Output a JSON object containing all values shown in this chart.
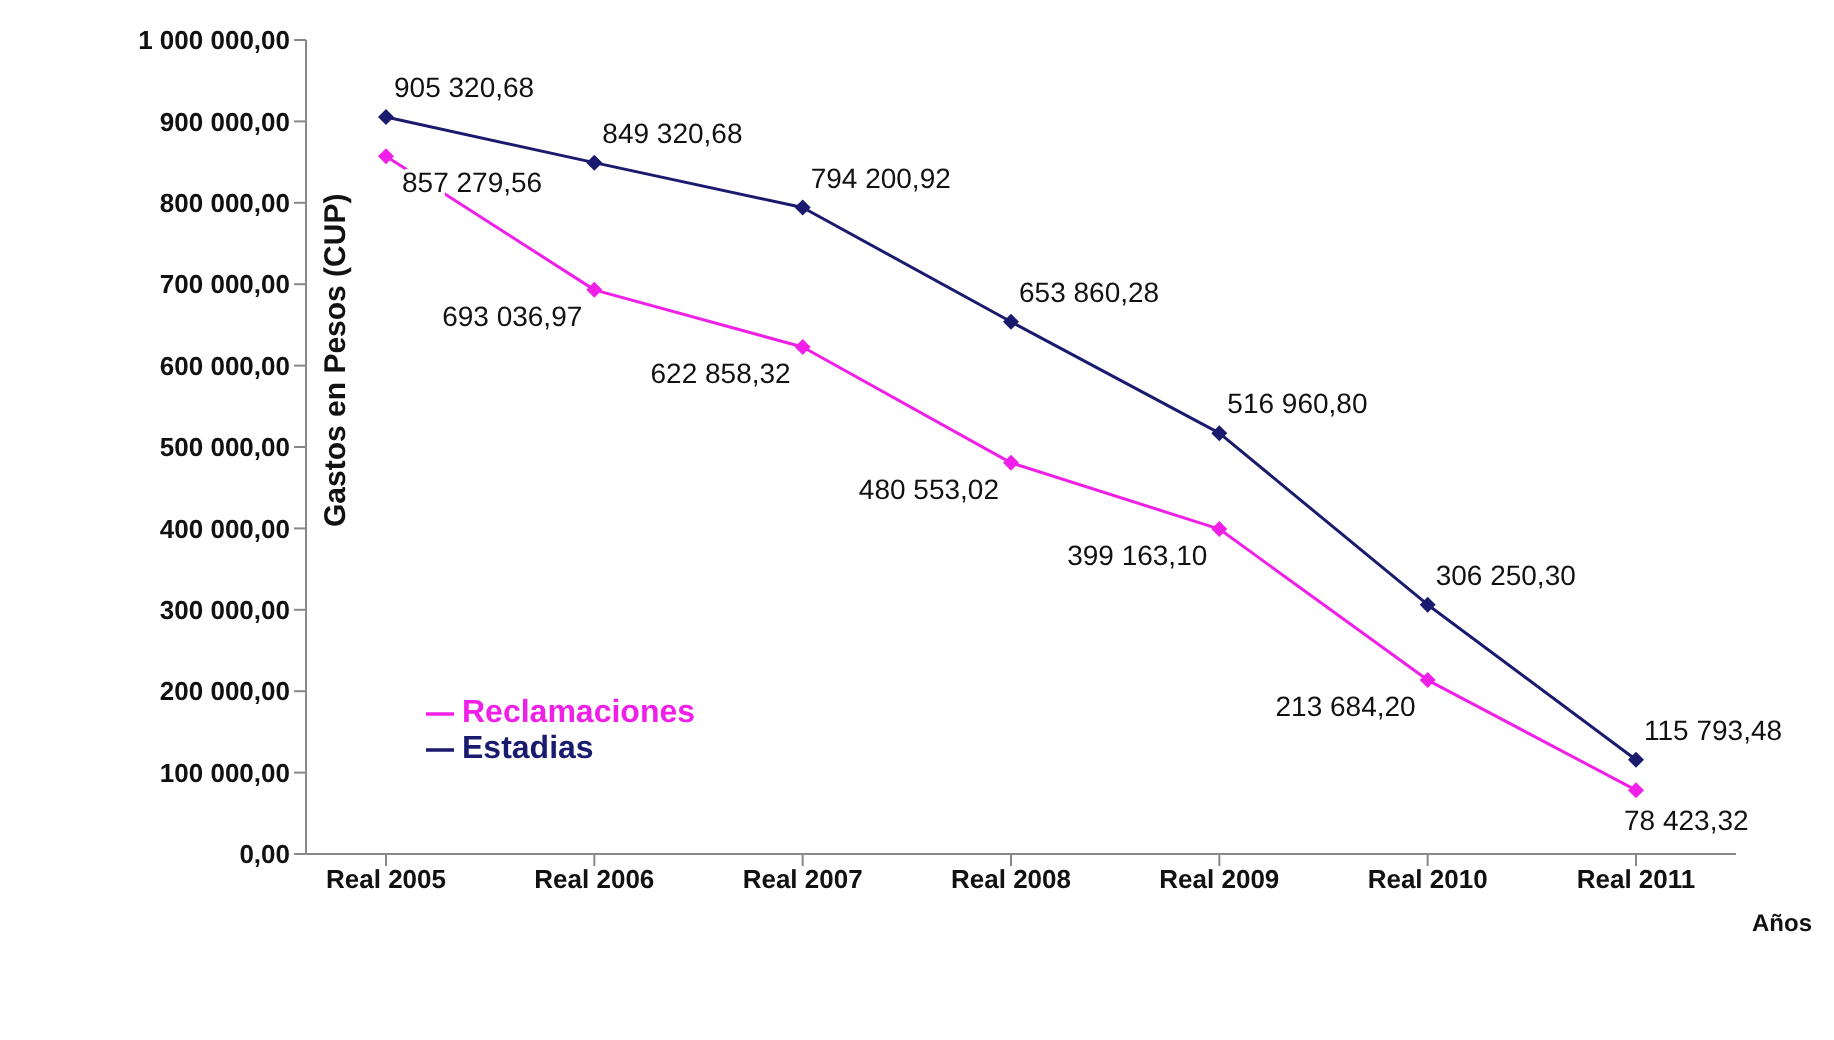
{
  "chart_data": {
    "type": "line",
    "xlabel": "Años",
    "ylabel": "Gastos en Pesos (CUP)",
    "categories": [
      "Real 2005",
      "Real 2006",
      "Real 2007",
      "Real 2008",
      "Real 2009",
      "Real 2010",
      "Real 2011"
    ],
    "series": [
      {
        "name": "Reclamaciones",
        "color": "#f020e8",
        "values": [
          857279.56,
          693036.97,
          622858.32,
          480553.02,
          399163.1,
          213684.2,
          78423.32
        ],
        "value_labels": [
          "857 279,56",
          "693 036,97",
          "622 858,32",
          "480 553,02",
          "399 163,10",
          "213 684,20",
          "78 423,32"
        ]
      },
      {
        "name": "Estadias",
        "color": "#1a1a6e",
        "values": [
          905320.68,
          849320.68,
          794200.92,
          653860.28,
          516960.8,
          306250.3,
          115793.48
        ],
        "value_labels": [
          "905 320,68",
          "849 320,68",
          "794 200,92",
          "653 860,28",
          "516 960,80",
          "306 250,30",
          "115 793,48"
        ]
      }
    ],
    "ylim": [
      0,
      1000000
    ],
    "yticks": [
      {
        "value": 0,
        "label": "0,00"
      },
      {
        "value": 100000,
        "label": "100 000,00"
      },
      {
        "value": 200000,
        "label": "200 000,00"
      },
      {
        "value": 300000,
        "label": "300 000,00"
      },
      {
        "value": 400000,
        "label": "400 000,00"
      },
      {
        "value": 500000,
        "label": "500 000,00"
      },
      {
        "value": 600000,
        "label": "600 000,00"
      },
      {
        "value": 700000,
        "label": "700 000,00"
      },
      {
        "value": 800000,
        "label": "800 000,00"
      },
      {
        "value": 900000,
        "label": "900 000,00"
      },
      {
        "value": 1000000,
        "label": "1 000 000,00"
      }
    ],
    "grid": false,
    "legend": "bottom left",
    "marker": "diamond",
    "line_style": "solid"
  }
}
